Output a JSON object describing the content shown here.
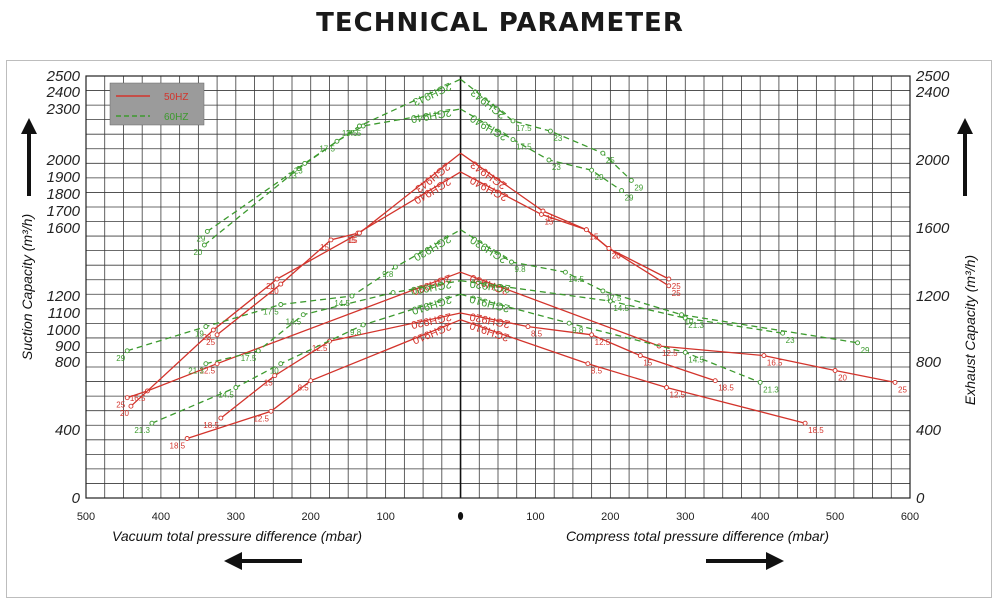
{
  "header": {
    "title": "TECHNICAL PARAMETER"
  },
  "chart_data": {
    "type": "line",
    "title": "TECHNICAL PARAMETER",
    "ylabel_left": "Suction Capacity  (m³/h)",
    "ylabel_right": "Exhaust Capacity  (m³/h)",
    "xlabel_left": "Vacuum total pressure difference  (mbar)",
    "xlabel_right": "Compress total pressure difference  (mbar)",
    "x_ticks": [
      "500",
      "400",
      "300",
      "200",
      "100",
      "0",
      "100",
      "200",
      "300",
      "400",
      "500",
      "600"
    ],
    "x_tick_values": [
      -500,
      -400,
      -300,
      -200,
      -100,
      0,
      100,
      200,
      300,
      400,
      500,
      600
    ],
    "y_ticks_left": [
      "0",
      "400",
      "800",
      "900",
      "1000",
      "1100",
      "1200",
      "1600",
      "1700",
      "1800",
      "1900",
      "2000",
      "2300",
      "2400",
      "2500"
    ],
    "y_tick_values_left": [
      0,
      400,
      800,
      900,
      1000,
      1100,
      1200,
      1600,
      1700,
      1800,
      1900,
      2000,
      2300,
      2400,
      2500
    ],
    "y_ticks_right": [
      "0",
      "400",
      "800",
      "1200",
      "1600",
      "2000",
      "2400",
      "2500"
    ],
    "y_tick_values_right": [
      0,
      400,
      800,
      1200,
      1600,
      2000,
      2400,
      2500
    ],
    "ylim": [
      0,
      2500
    ],
    "xlim": [
      -500,
      600
    ],
    "grid": true,
    "legend": {
      "position": "top-left",
      "entries": [
        {
          "name": "50HZ",
          "color": "#d3342c",
          "style": "solid"
        },
        {
          "name": "60HZ",
          "color": "#3c9a2e",
          "style": "dashed"
        }
      ]
    },
    "colors": {
      "hz50": "#d3342c",
      "hz60": "#3c9a2e"
    },
    "series": [
      {
        "name": "2GH910",
        "freq": "50HZ",
        "vacuum": {
          "x": [
            -365,
            -253,
            -200,
            0
          ],
          "y": [
            350,
            510,
            690,
            1060
          ],
          "labels": [
            "18.5",
            "12.5",
            "8.5",
            ""
          ]
        },
        "compress": {
          "x": [
            0,
            170,
            275,
            460
          ],
          "y": [
            1060,
            790,
            650,
            440
          ],
          "labels": [
            "",
            "8.5",
            "12.5",
            "18.5"
          ]
        }
      },
      {
        "name": "2GH920",
        "freq": "50HZ",
        "vacuum": {
          "x": [
            -320,
            -248,
            -175,
            0
          ],
          "y": [
            470,
            720,
            930,
            1100
          ],
          "labels": [
            "18.5",
            "15",
            "12.5",
            ""
          ]
        },
        "compress": {
          "x": [
            0,
            90,
            175,
            240,
            340
          ],
          "y": [
            1100,
            1020,
            970,
            840,
            690
          ],
          "labels": [
            "",
            "8.5",
            "12.5",
            "15",
            "18.5"
          ]
        }
      },
      {
        "name": "2GH930",
        "freq": "50HZ",
        "vacuum": {
          "x": [
            -445,
            -418,
            -325,
            0
          ],
          "y": [
            590,
            630,
            790,
            1340
          ],
          "labels": [
            "25",
            "16.5",
            "12.5",
            ""
          ]
        },
        "compress": {
          "x": [
            0,
            265,
            405,
            500,
            580
          ],
          "y": [
            1340,
            900,
            840,
            750,
            680
          ],
          "labels": [
            "",
            "12.5",
            "16.5",
            "20",
            "25"
          ]
        }
      },
      {
        "name": "2GH940",
        "freq": "50HZ",
        "vacuum": {
          "x": [
            -325,
            -240,
            -173,
            -137,
            0
          ],
          "y": [
            970,
            1270,
            1530,
            1570,
            1930
          ],
          "labels": [
            "25",
            "20",
            "15",
            "15",
            ""
          ]
        },
        "compress": {
          "x": [
            0,
            108,
            168,
            198,
            278
          ],
          "y": [
            1930,
            1680,
            1590,
            1480,
            1260
          ],
          "labels": [
            "",
            "15",
            "15",
            "20",
            "25"
          ]
        }
      },
      {
        "name": "2GH943",
        "freq": "50HZ",
        "vacuum": {
          "x": [
            -440,
            -330,
            -245,
            -135,
            0
          ],
          "y": [
            540,
            1000,
            1300,
            1570,
            2040
          ],
          "labels": [
            "20",
            "28",
            "20",
            "15",
            ""
          ]
        },
        "compress": {
          "x": [
            0,
            110,
            168,
            198,
            278
          ],
          "y": [
            2040,
            1700,
            1590,
            1480,
            1300
          ],
          "labels": [
            "",
            "15",
            "15",
            "20",
            "25"
          ]
        }
      },
      {
        "name": "2GH910",
        "freq": "60HZ",
        "vacuum": {
          "x": [
            -412,
            -300,
            -240,
            -130,
            0
          ],
          "y": [
            440,
            650,
            790,
            1030,
            1210
          ],
          "labels": [
            "21.3",
            "14.5",
            "10",
            "9.8",
            ""
          ]
        },
        "compress": {
          "x": [
            0,
            145,
            300,
            400
          ],
          "y": [
            1210,
            1040,
            860,
            680
          ],
          "labels": [
            "",
            "9.8",
            "14.5",
            "21.3"
          ]
        }
      },
      {
        "name": "2GH920",
        "freq": "60HZ",
        "vacuum": {
          "x": [
            -340,
            -270,
            -210,
            -90,
            0
          ],
          "y": [
            790,
            870,
            1090,
            1220,
            1290
          ],
          "labels": [
            "21.3",
            "17.5",
            "14.5",
            "",
            ""
          ]
        },
        "compress": {
          "x": [
            0,
            200,
            300,
            430
          ],
          "y": [
            1290,
            1170,
            1070,
            980
          ],
          "labels": [
            "",
            "14.5",
            "21.3",
            "23"
          ]
        }
      },
      {
        "name": "2GH930",
        "freq": "60HZ",
        "vacuum": {
          "x": [
            -445,
            -340,
            -240,
            -145,
            -87,
            0
          ],
          "y": [
            870,
            1020,
            1150,
            1200,
            1370,
            1590
          ],
          "labels": [
            "29",
            "19",
            "17.5",
            "14.5",
            "9.8",
            ""
          ]
        },
        "compress": {
          "x": [
            0,
            68,
            140,
            190,
            295,
            530
          ],
          "y": [
            1590,
            1400,
            1340,
            1230,
            1090,
            920
          ],
          "labels": [
            "",
            "9.8",
            "14.5",
            "17.5",
            "10",
            "29"
          ]
        }
      },
      {
        "name": "2GH940",
        "freq": "60HZ",
        "vacuum": {
          "x": [
            -342,
            -216,
            -165,
            -130,
            0
          ],
          "y": [
            1500,
            1950,
            2110,
            2200,
            2300
          ],
          "labels": [
            "20",
            "23",
            "17.5",
            "17.5",
            ""
          ]
        },
        "compress": {
          "x": [
            0,
            70,
            118,
            175,
            215
          ],
          "y": [
            2300,
            2120,
            2000,
            1940,
            1820
          ],
          "labels": [
            "",
            "17.5",
            "23",
            "29",
            "29"
          ]
        }
      },
      {
        "name": "2GH943",
        "freq": "60HZ",
        "vacuum": {
          "x": [
            -338,
            -208,
            -135,
            0
          ],
          "y": [
            1580,
            1980,
            2200,
            2480
          ],
          "labels": [
            "29",
            "23",
            "17.5",
            ""
          ]
        },
        "compress": {
          "x": [
            0,
            70,
            120,
            190,
            228
          ],
          "y": [
            2480,
            2230,
            2170,
            2040,
            1880
          ],
          "labels": [
            "",
            "17.5",
            "23",
            "25",
            "29"
          ]
        }
      }
    ]
  }
}
